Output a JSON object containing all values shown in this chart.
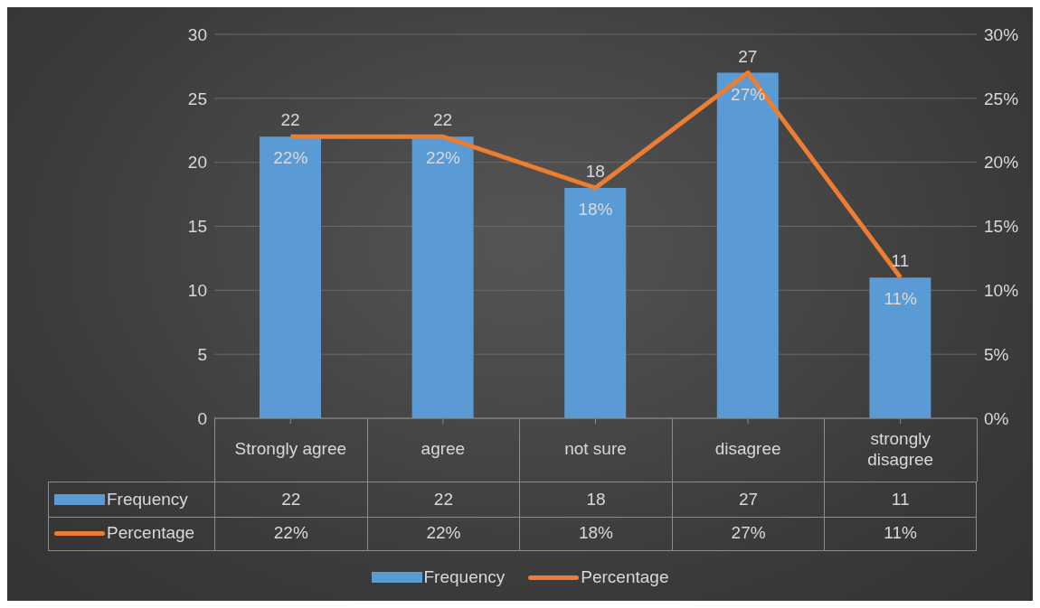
{
  "chart_data": {
    "type": "bar",
    "categories": [
      "Strongly agree",
      "agree",
      "not sure",
      "disagree",
      "strongly disagree"
    ],
    "series": [
      {
        "name": "Frequency",
        "color": "#5b9bd5",
        "values": [
          22,
          22,
          18,
          27,
          11
        ],
        "value_labels": [
          "22",
          "22",
          "18",
          "27",
          "11"
        ]
      },
      {
        "name": "Percentage",
        "type": "line",
        "axis": "y2",
        "color": "#ed7d31",
        "values": [
          22,
          22,
          18,
          27,
          11
        ],
        "value_labels": [
          "22%",
          "22%",
          "18%",
          "27%",
          "11%"
        ]
      }
    ],
    "ylim": [
      0,
      30
    ],
    "yticks": [
      0,
      5,
      10,
      15,
      20,
      25,
      30
    ],
    "y2lim": [
      0,
      30
    ],
    "y2ticks": [
      {
        "value": 0,
        "label": "0%"
      },
      {
        "value": 5,
        "label": "5%"
      },
      {
        "value": 10,
        "label": "10%"
      },
      {
        "value": 15,
        "label": "15%"
      },
      {
        "value": 20,
        "label": "20%"
      },
      {
        "value": 25,
        "label": "25%"
      },
      {
        "value": 30,
        "label": "30%"
      }
    ],
    "grid": "y",
    "legend": "bottom",
    "marker": "none",
    "line_style": "solid"
  }
}
